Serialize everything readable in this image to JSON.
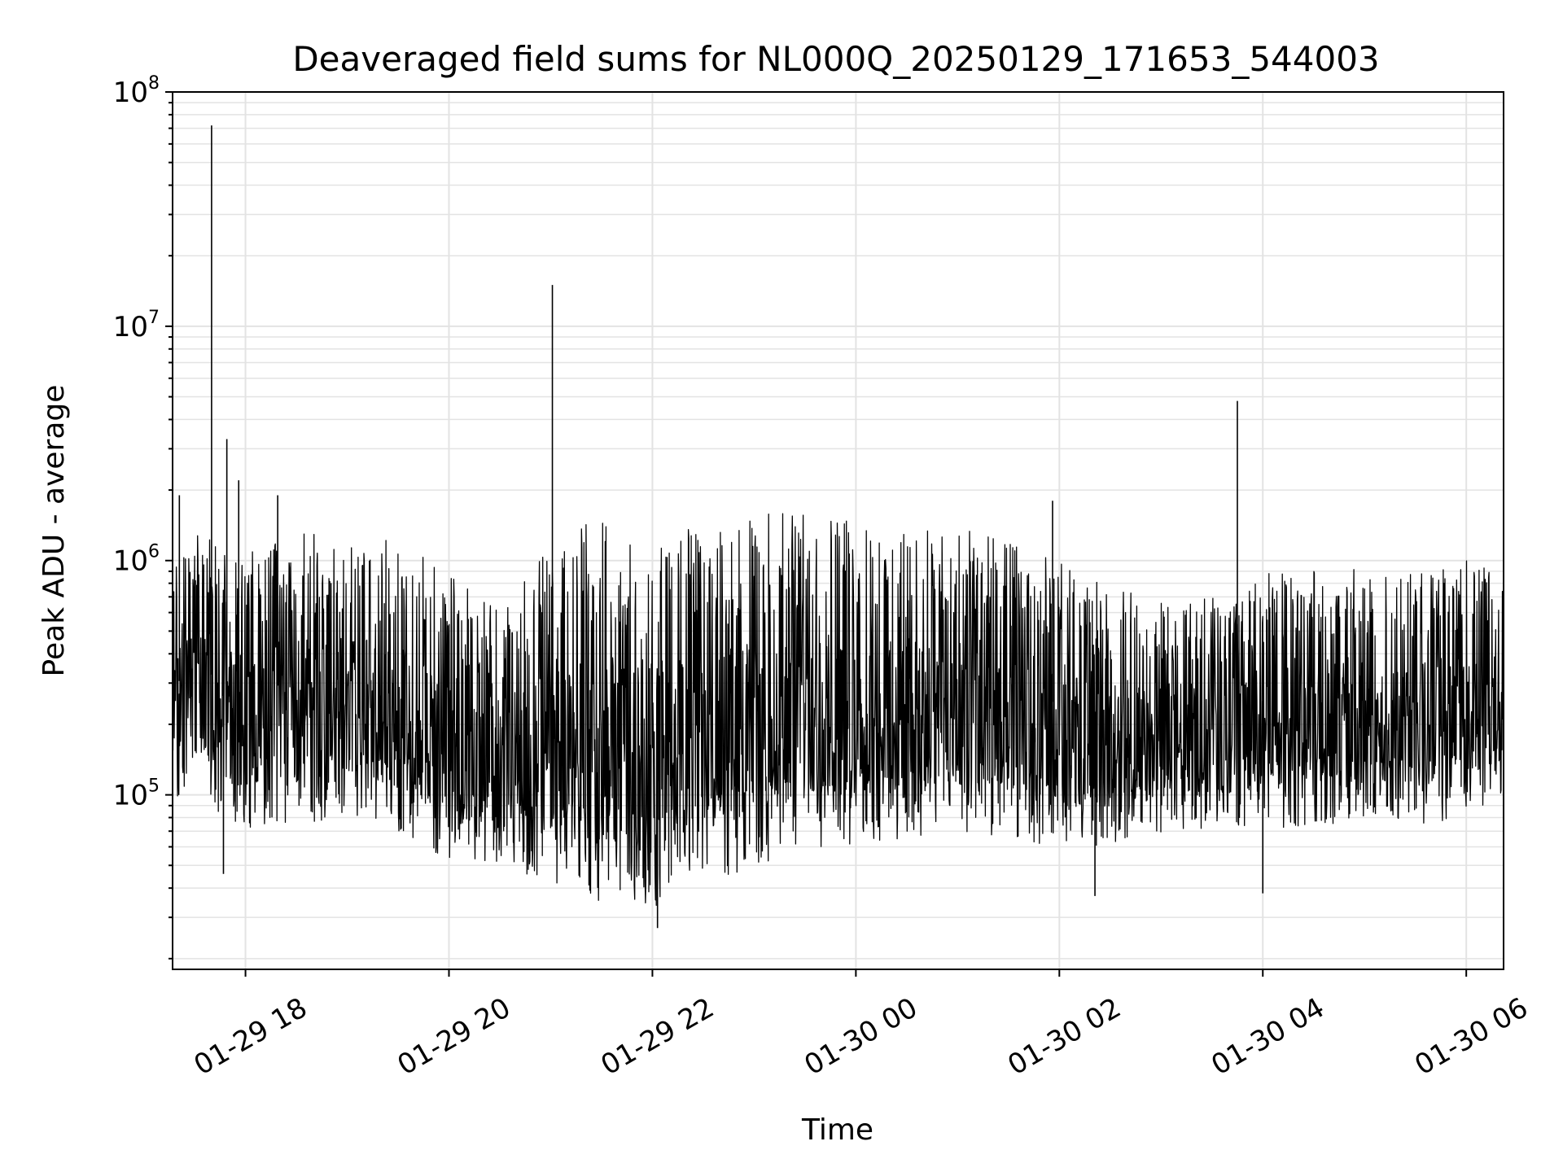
{
  "chart_data": {
    "type": "line",
    "title": "Deaveraged field sums for NL000Q_20250129_171653_544003",
    "xlabel": "Time",
    "ylabel": "Peak ADU - average",
    "yscale": "log",
    "grid": true,
    "line_color": "#000000",
    "grid_color": "#e3e3e3",
    "xlim": [
      "2025-01-29T17:17:00",
      "2025-01-30T06:22:00"
    ],
    "ylim": [
      18000,
      100000000
    ],
    "x_ticks": [
      {
        "label": "01-29 18",
        "value": "2025-01-29T18:00:00"
      },
      {
        "label": "01-29 20",
        "value": "2025-01-29T20:00:00"
      },
      {
        "label": "01-29 22",
        "value": "2025-01-29T22:00:00"
      },
      {
        "label": "01-30 00",
        "value": "2025-01-30T00:00:00"
      },
      {
        "label": "01-30 02",
        "value": "2025-01-30T02:00:00"
      },
      {
        "label": "01-30 04",
        "value": "2025-01-30T04:00:00"
      },
      {
        "label": "01-30 06",
        "value": "2025-01-30T06:00:00"
      }
    ],
    "y_ticks": [
      {
        "base": "10",
        "exp": "5",
        "value": 100000
      },
      {
        "base": "10",
        "exp": "6",
        "value": 1000000
      },
      {
        "base": "10",
        "exp": "7",
        "value": 10000000
      },
      {
        "base": "10",
        "exp": "8",
        "value": 100000000
      }
    ],
    "series": [
      {
        "envelope": [
          {
            "x": "2025-01-29T17:17:00",
            "low": 90000,
            "high": 900000
          },
          {
            "x": "2025-01-29T17:30:00",
            "low": 100000,
            "high": 1300000
          },
          {
            "x": "2025-01-29T17:45:00",
            "low": 80000,
            "high": 1200000
          },
          {
            "x": "2025-01-29T18:00:00",
            "low": 70000,
            "high": 1100000
          },
          {
            "x": "2025-01-29T18:30:00",
            "low": 75000,
            "high": 1300000
          },
          {
            "x": "2025-01-29T19:00:00",
            "low": 80000,
            "high": 1300000
          },
          {
            "x": "2025-01-29T19:30:00",
            "low": 70000,
            "high": 1200000
          },
          {
            "x": "2025-01-29T20:00:00",
            "low": 50000,
            "high": 900000
          },
          {
            "x": "2025-01-29T20:30:00",
            "low": 50000,
            "high": 600000
          },
          {
            "x": "2025-01-29T21:00:00",
            "low": 40000,
            "high": 1300000
          },
          {
            "x": "2025-01-29T21:30:00",
            "low": 35000,
            "high": 1500000
          },
          {
            "x": "2025-01-29T22:00:00",
            "low": 32000,
            "high": 1400000
          },
          {
            "x": "2025-01-29T22:30:00",
            "low": 40000,
            "high": 1400000
          },
          {
            "x": "2025-01-29T23:00:00",
            "low": 50000,
            "high": 1600000
          },
          {
            "x": "2025-01-29T23:30:00",
            "low": 55000,
            "high": 1600000
          },
          {
            "x": "2025-01-30T00:00:00",
            "low": 60000,
            "high": 1500000
          },
          {
            "x": "2025-01-30T00:30:00",
            "low": 65000,
            "high": 1400000
          },
          {
            "x": "2025-01-30T01:00:00",
            "low": 70000,
            "high": 1400000
          },
          {
            "x": "2025-01-30T01:30:00",
            "low": 65000,
            "high": 1200000
          },
          {
            "x": "2025-01-30T02:00:00",
            "low": 60000,
            "high": 1000000
          },
          {
            "x": "2025-01-30T02:30:00",
            "low": 60000,
            "high": 800000
          },
          {
            "x": "2025-01-30T03:00:00",
            "low": 65000,
            "high": 700000
          },
          {
            "x": "2025-01-30T03:30:00",
            "low": 70000,
            "high": 700000
          },
          {
            "x": "2025-01-30T04:00:00",
            "low": 70000,
            "high": 900000
          },
          {
            "x": "2025-01-30T04:30:00",
            "low": 75000,
            "high": 1000000
          },
          {
            "x": "2025-01-30T05:00:00",
            "low": 75000,
            "high": 900000
          },
          {
            "x": "2025-01-30T05:30:00",
            "low": 75000,
            "high": 900000
          },
          {
            "x": "2025-01-30T06:00:00",
            "low": 80000,
            "high": 1000000
          },
          {
            "x": "2025-01-30T06:22:00",
            "low": 100000,
            "high": 900000
          }
        ],
        "spikes": [
          {
            "x": "2025-01-29T17:40:00",
            "y": 72000000
          },
          {
            "x": "2025-01-29T17:49:00",
            "y": 3300000
          },
          {
            "x": "2025-01-29T17:56:00",
            "y": 2200000
          },
          {
            "x": "2025-01-29T21:01:00",
            "y": 15000000
          },
          {
            "x": "2025-01-30T03:45:00",
            "y": 4800000
          },
          {
            "x": "2025-01-29T17:21:00",
            "y": 1900000
          },
          {
            "x": "2025-01-29T18:19:00",
            "y": 1900000
          },
          {
            "x": "2025-01-30T01:56:00",
            "y": 1800000
          },
          {
            "x": "2025-01-29T22:03:00",
            "y": 27000
          },
          {
            "x": "2025-01-29T17:47:00",
            "y": 46000
          },
          {
            "x": "2025-01-30T04:00:00",
            "y": 38000
          },
          {
            "x": "2025-01-30T02:21:00",
            "y": 37000
          }
        ]
      }
    ]
  }
}
